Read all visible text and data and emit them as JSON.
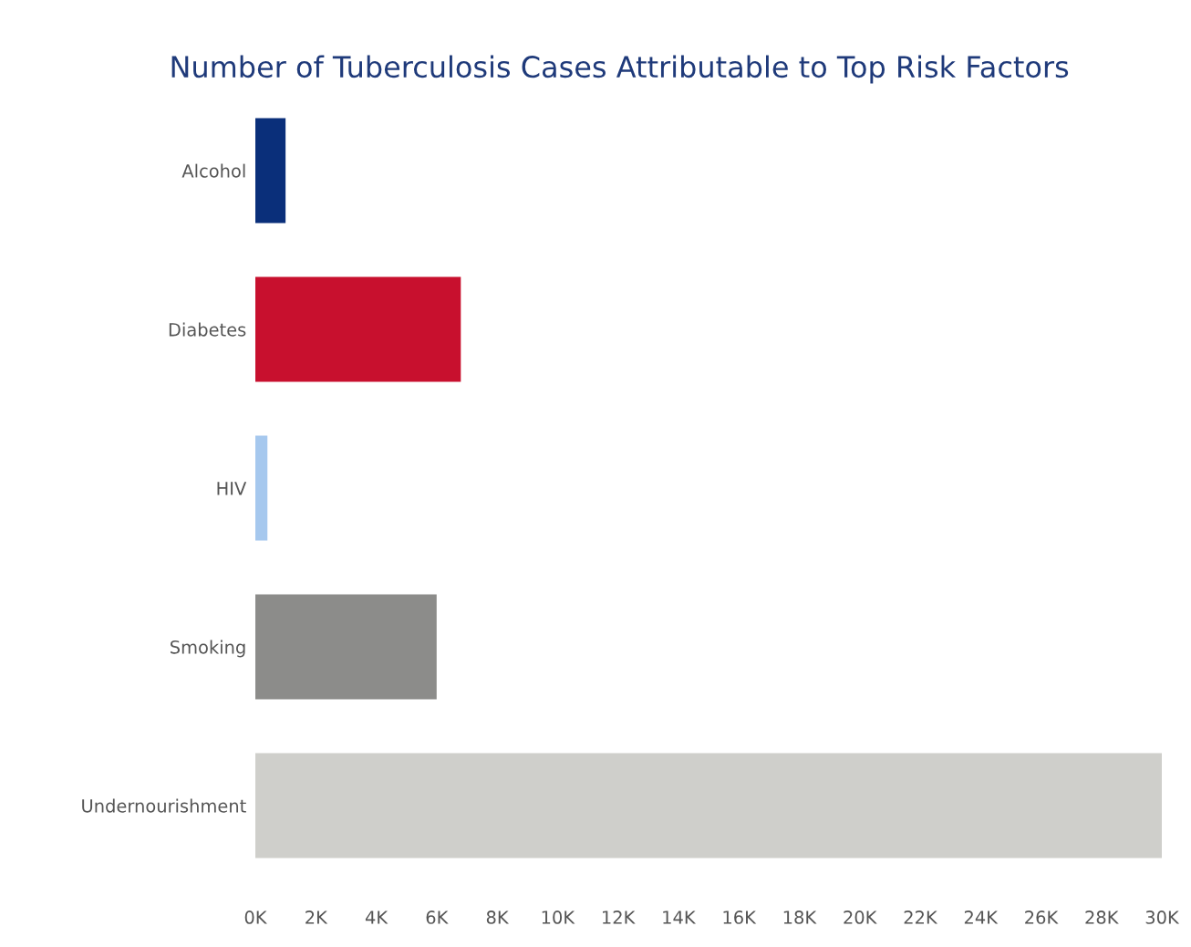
{
  "chart_data": {
    "type": "bar",
    "orientation": "horizontal",
    "title": "Number of Tuberculosis Cases Attributable to Top Risk Factors",
    "categories": [
      "Alcohol",
      "Diabetes",
      "HIV",
      "Smoking",
      "Undernourishment"
    ],
    "values": [
      1000,
      6800,
      400,
      6000,
      30000
    ],
    "colors": [
      "#0a2f7a",
      "#c8102e",
      "#a6c8ee",
      "#8c8c8a",
      "#cfcfcb"
    ],
    "xlim": [
      0,
      30000
    ],
    "xticks": [
      {
        "value": 0,
        "label": "0K"
      },
      {
        "value": 2000,
        "label": "2K"
      },
      {
        "value": 4000,
        "label": "4K"
      },
      {
        "value": 6000,
        "label": "6K"
      },
      {
        "value": 8000,
        "label": "8K"
      },
      {
        "value": 10000,
        "label": "10K"
      },
      {
        "value": 12000,
        "label": "12K"
      },
      {
        "value": 14000,
        "label": "14K"
      },
      {
        "value": 16000,
        "label": "16K"
      },
      {
        "value": 18000,
        "label": "18K"
      },
      {
        "value": 20000,
        "label": "20K"
      },
      {
        "value": 22000,
        "label": "22K"
      },
      {
        "value": 24000,
        "label": "24K"
      },
      {
        "value": 26000,
        "label": "26K"
      },
      {
        "value": 28000,
        "label": "28K"
      },
      {
        "value": 30000,
        "label": "30K"
      }
    ],
    "grid": false
  }
}
